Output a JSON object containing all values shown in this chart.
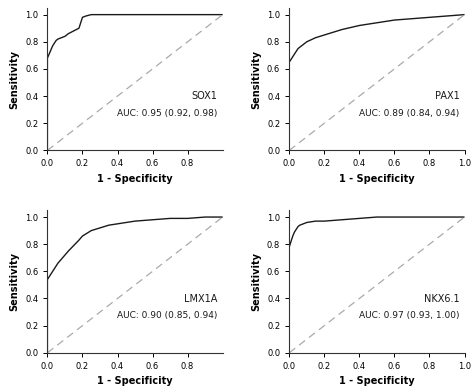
{
  "plots": [
    {
      "name": "SOX1",
      "auc_text": "AUC: 0.95 (0.92, 0.98)",
      "roc_x": [
        0.0,
        0.0,
        0.01,
        0.02,
        0.03,
        0.04,
        0.05,
        0.06,
        0.08,
        0.1,
        0.12,
        0.15,
        0.18,
        0.2,
        0.22,
        0.25,
        0.3,
        0.4,
        0.5,
        0.6,
        0.7,
        0.8,
        0.9,
        1.0
      ],
      "roc_y": [
        0.0,
        0.68,
        0.71,
        0.74,
        0.77,
        0.79,
        0.81,
        0.82,
        0.83,
        0.84,
        0.86,
        0.88,
        0.9,
        0.98,
        0.99,
        1.0,
        1.0,
        1.0,
        1.0,
        1.0,
        1.0,
        1.0,
        1.0,
        1.0
      ],
      "xlim": [
        0.0,
        1.0
      ],
      "xticks": [
        0.0,
        0.2,
        0.4,
        0.6,
        0.8
      ],
      "xticklabels": [
        "0.0",
        "0.2",
        "0.4",
        "0.6",
        "0.8"
      ]
    },
    {
      "name": "PAX1",
      "auc_text": "AUC: 0.89 (0.84, 0.94)",
      "roc_x": [
        0.0,
        0.0,
        0.01,
        0.02,
        0.03,
        0.04,
        0.05,
        0.06,
        0.08,
        0.1,
        0.15,
        0.2,
        0.25,
        0.3,
        0.4,
        0.5,
        0.6,
        0.7,
        0.8,
        0.9,
        1.0
      ],
      "roc_y": [
        0.0,
        0.65,
        0.67,
        0.69,
        0.71,
        0.73,
        0.75,
        0.76,
        0.78,
        0.8,
        0.83,
        0.85,
        0.87,
        0.89,
        0.92,
        0.94,
        0.96,
        0.97,
        0.98,
        0.99,
        1.0
      ],
      "xlim": [
        0.0,
        1.0
      ],
      "xticks": [
        0.0,
        0.2,
        0.4,
        0.6,
        0.8,
        1.0
      ],
      "xticklabels": [
        "0.0",
        "0.2",
        "0.4",
        "0.6",
        "0.8",
        "1.0"
      ]
    },
    {
      "name": "LMX1A",
      "auc_text": "AUC: 0.90 (0.85, 0.94)",
      "roc_x": [
        0.0,
        0.0,
        0.01,
        0.02,
        0.03,
        0.04,
        0.05,
        0.06,
        0.08,
        0.1,
        0.12,
        0.15,
        0.18,
        0.2,
        0.25,
        0.3,
        0.35,
        0.4,
        0.5,
        0.6,
        0.7,
        0.8,
        0.9,
        1.0
      ],
      "roc_y": [
        0.0,
        0.54,
        0.56,
        0.58,
        0.6,
        0.62,
        0.64,
        0.66,
        0.69,
        0.72,
        0.75,
        0.79,
        0.83,
        0.86,
        0.9,
        0.92,
        0.94,
        0.95,
        0.97,
        0.98,
        0.99,
        0.99,
        1.0,
        1.0
      ],
      "xlim": [
        0.0,
        1.0
      ],
      "xticks": [
        0.0,
        0.2,
        0.4,
        0.6,
        0.8
      ],
      "xticklabels": [
        "0.0",
        "0.2",
        "0.4",
        "0.6",
        "0.8"
      ]
    },
    {
      "name": "NKX6.1",
      "auc_text": "AUC: 0.97 (0.93, 1.00)",
      "roc_x": [
        0.0,
        0.0,
        0.01,
        0.02,
        0.03,
        0.04,
        0.05,
        0.06,
        0.08,
        0.1,
        0.15,
        0.2,
        0.3,
        0.4,
        0.5,
        0.6,
        0.7,
        0.8,
        0.9,
        1.0
      ],
      "roc_y": [
        0.0,
        0.78,
        0.82,
        0.86,
        0.89,
        0.91,
        0.93,
        0.94,
        0.95,
        0.96,
        0.97,
        0.97,
        0.98,
        0.99,
        1.0,
        1.0,
        1.0,
        1.0,
        1.0,
        1.0
      ],
      "xlim": [
        0.0,
        1.0
      ],
      "xticks": [
        0.0,
        0.2,
        0.4,
        0.6,
        0.8,
        1.0
      ],
      "xticklabels": [
        "0.0",
        "0.2",
        "0.4",
        "0.6",
        "0.8",
        "1.0"
      ]
    }
  ],
  "line_color": "#1a1a1a",
  "diag_color": "#aaaaaa",
  "bg_color": "#ffffff",
  "text_color": "#1a1a1a",
  "xlabel": "1 - Specificity",
  "ylabel": "Sensitivity",
  "ylim": [
    0.0,
    1.05
  ],
  "yticks": [
    0.0,
    0.2,
    0.4,
    0.6,
    0.8,
    1.0
  ],
  "yticklabels": [
    "0.0",
    "0.2",
    "0.4",
    "0.6",
    "0.8",
    "1.0"
  ],
  "name_fontsize": 7,
  "auc_fontsize": 6.5,
  "axis_label_fontsize": 7,
  "tick_fontsize": 6
}
